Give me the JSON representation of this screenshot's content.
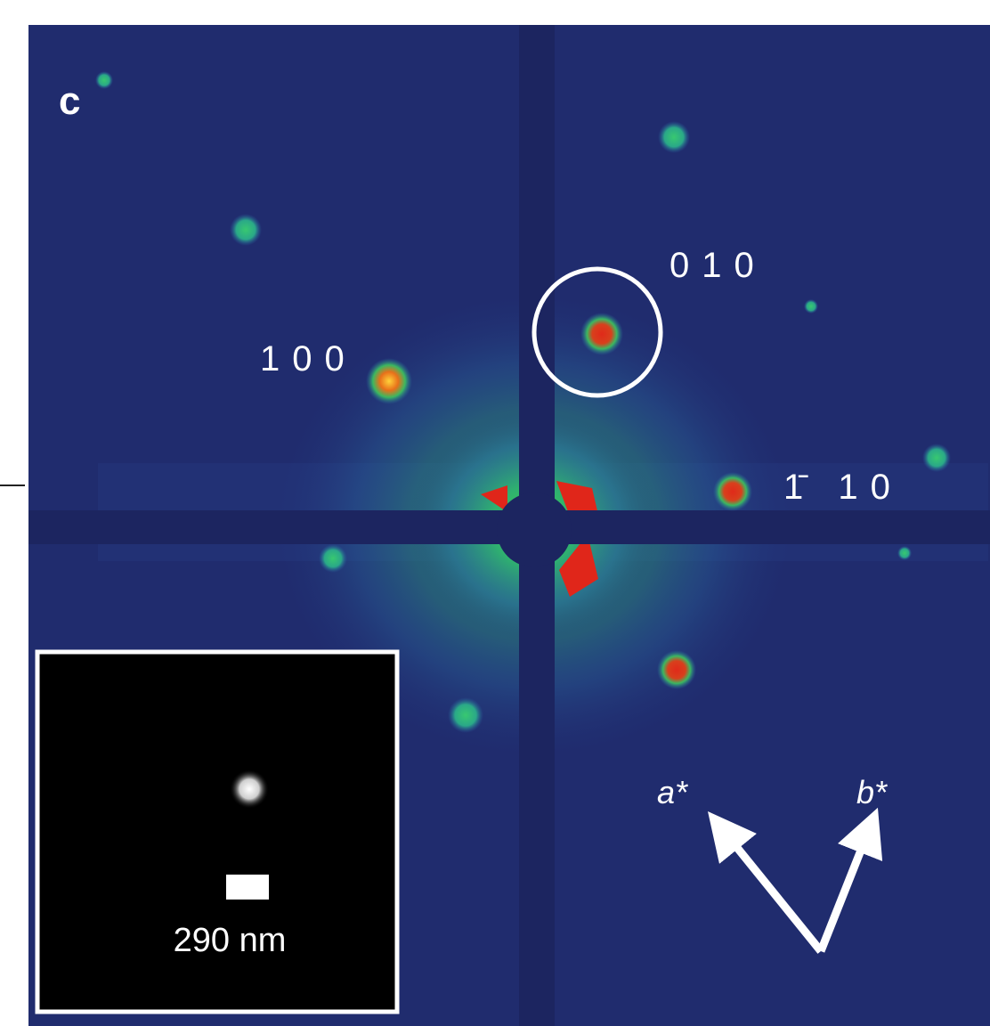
{
  "panel_label": "c",
  "spot_labels": {
    "s010": "010",
    "s100": "100",
    "s110": "1̄ 10"
  },
  "axes_labels": {
    "a": "a*",
    "b": "b*"
  },
  "inset": {
    "scale_bar_label": "290 nm"
  }
}
